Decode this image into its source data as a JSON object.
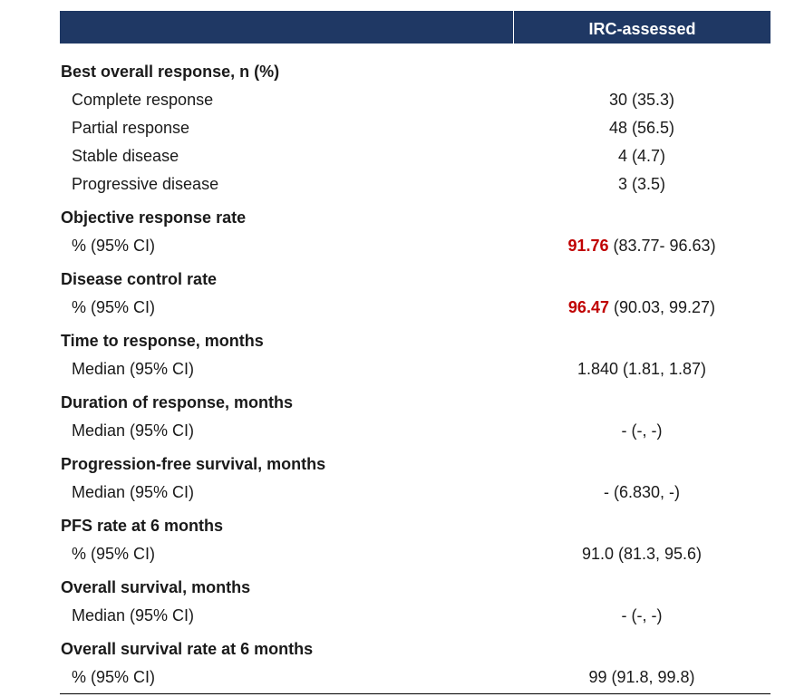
{
  "table": {
    "column_header": "IRC-assessed",
    "sections": [
      {
        "heading": "Best overall response, n (%)",
        "rows": [
          {
            "label": "Complete response",
            "value": "30 (35.3)"
          },
          {
            "label": "Partial response",
            "value": "48 (56.5)"
          },
          {
            "label": "Stable disease",
            "value": "4 (4.7)"
          },
          {
            "label": "Progressive disease",
            "value": "3 (3.5)"
          }
        ]
      },
      {
        "heading": "Objective response rate",
        "rows": [
          {
            "label": "% (95% CI)",
            "value_highlight": "91.76",
            "value": " (83.77- 96.63)"
          }
        ]
      },
      {
        "heading": "Disease control rate",
        "rows": [
          {
            "label": "% (95% CI)",
            "value_highlight": "96.47",
            "value": " (90.03, 99.27)"
          }
        ]
      },
      {
        "heading": "Time to response, months",
        "rows": [
          {
            "label": "Median (95% CI)",
            "value": "1.840 (1.81, 1.87)"
          }
        ]
      },
      {
        "heading": "Duration of response, months",
        "rows": [
          {
            "label": "Median (95% CI)",
            "value": "- (-, -)"
          }
        ]
      },
      {
        "heading": "Progression-free survival, months",
        "rows": [
          {
            "label": "Median (95% CI)",
            "value": "- (6.830, -)"
          }
        ]
      },
      {
        "heading": "PFS rate at 6 months",
        "rows": [
          {
            "label": "% (95% CI)",
            "value": "91.0 (81.3, 95.6)"
          }
        ]
      },
      {
        "heading": "Overall survival, months",
        "rows": [
          {
            "label": "Median (95% CI)",
            "value": "- (-, -)"
          }
        ]
      },
      {
        "heading": "Overall survival rate at 6 months",
        "rows": [
          {
            "label": "% (95% CI)",
            "value": "99 (91.8, 99.8)"
          }
        ]
      }
    ],
    "colors": {
      "header_bg": "#1f3864",
      "header_text": "#ffffff",
      "highlight": "#c00000"
    }
  }
}
